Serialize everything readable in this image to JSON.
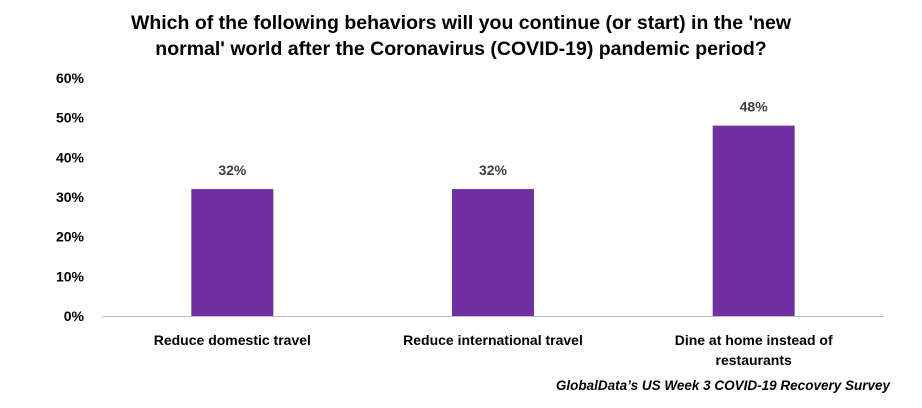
{
  "chart_data": {
    "type": "bar",
    "title_lines": [
      "Which of the following behaviors will you continue (or start) in the 'new",
      "normal' world after the Coronavirus (COVID-19) pandemic period?"
    ],
    "categories": [
      [
        "Reduce domestic travel"
      ],
      [
        "Reduce international travel"
      ],
      [
        "Dine at home instead of",
        "restaurants"
      ]
    ],
    "values": [
      32,
      32,
      48
    ],
    "data_labels": [
      "32%",
      "32%",
      "48%"
    ],
    "ylim": [
      0,
      60
    ],
    "yticks": [
      0,
      10,
      20,
      30,
      40,
      50,
      60
    ],
    "ytick_labels": [
      "0%",
      "10%",
      "20%",
      "30%",
      "40%",
      "50%",
      "60%"
    ],
    "xlabel": "",
    "ylabel": "",
    "grid": false,
    "legend": "none",
    "bar_color": "#7030A0",
    "axis_color": "#BFBFBF"
  },
  "source": "GlobalData’s US Week 3 COVID-19 Recovery Survey"
}
